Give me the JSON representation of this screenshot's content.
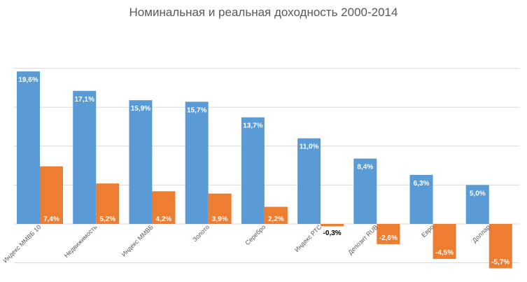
{
  "chart_data": {
    "type": "bar",
    "title": "Номинальная и реальная доходность 2000-2014",
    "categories": [
      "Индекс ММВБ 10",
      "Недвижимость",
      "Индекс ММВБ",
      "Золото",
      "Серебро",
      "Индекс РТС",
      "Депозит RUB",
      "Евро",
      "Доллар"
    ],
    "series": [
      {
        "values": [
          19.6,
          17.1,
          15.9,
          15.7,
          13.7,
          11.0,
          8.4,
          6.3,
          5.0
        ],
        "color": "#5b9bd5"
      },
      {
        "values": [
          7.4,
          5.2,
          4.2,
          3.9,
          2.2,
          -0.3,
          -2.6,
          -4.5,
          -5.7
        ],
        "color": "#ed7d31"
      }
    ],
    "data_labels": {
      "nominal": [
        "19,6%",
        "17,1%",
        "15,9%",
        "15,7%",
        "13,7%",
        "11,0%",
        "8,4%",
        "6,3%",
        "5,0%"
      ],
      "real": [
        "7,4%",
        "5,2%",
        "4,2%",
        "3,9%",
        "2,2%",
        "-0,3%",
        "-2,6%",
        "-4,5%",
        "-5,7%"
      ]
    },
    "ylim": [
      -5,
      20
    ],
    "grid": true,
    "legend": "none"
  }
}
